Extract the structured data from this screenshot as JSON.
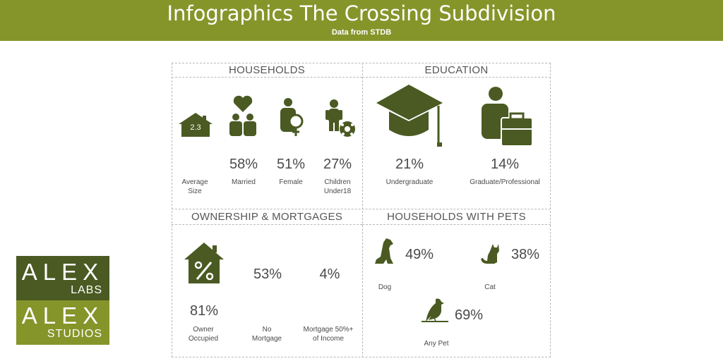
{
  "header": {
    "title": "Infographics The Crossing Subdivision",
    "subtitle": "Data from STDB"
  },
  "households": {
    "title": "HOUSEHOLDS",
    "average_size_value": "2.3",
    "average_size_label": "Average\nSize",
    "married_pct": "58%",
    "married_label": "Married",
    "female_pct": "51%",
    "female_label": "Female",
    "children_pct": "27%",
    "children_label": "Children\nUnder18"
  },
  "education": {
    "title": "EDUCATION",
    "undergrad_pct": "21%",
    "undergrad_label": "Undergraduate",
    "grad_pct": "14%",
    "grad_label": "Graduate/Professional"
  },
  "ownership": {
    "title": "OWNERSHIP & MORTGAGES",
    "owner_pct": "81%",
    "owner_label": "Owner\nOccupied",
    "no_mortgage_pct": "53%",
    "no_mortgage_label": "No\nMortgage",
    "mortgage50_pct": "4%",
    "mortgage50_label": "Mortgage 50%+\nof Income"
  },
  "pets": {
    "title": "HOUSEHOLDS WITH PETS",
    "dog_pct": "49%",
    "dog_label": "Dog",
    "cat_pct": "38%",
    "cat_label": "Cat",
    "any_pct": "69%",
    "any_label": "Any Pet"
  },
  "logo": {
    "top_word": "ALEX",
    "top_sub": "LABS",
    "bottom_word": "ALEX",
    "bottom_sub": "STUDIOS"
  },
  "icons": {
    "house": "house-icon",
    "couple": "couple-heart-icon",
    "female": "female-icon",
    "child": "child-ball-icon",
    "cap": "graduation-cap-icon",
    "briefcase": "person-briefcase-icon",
    "percent_house": "percent-house-icon",
    "dog": "dog-icon",
    "cat": "cat-icon",
    "bird": "bird-icon"
  },
  "colors": {
    "accent": "#86952a",
    "icon": "#4a5a22",
    "logo_dark": "#4a5a22"
  }
}
